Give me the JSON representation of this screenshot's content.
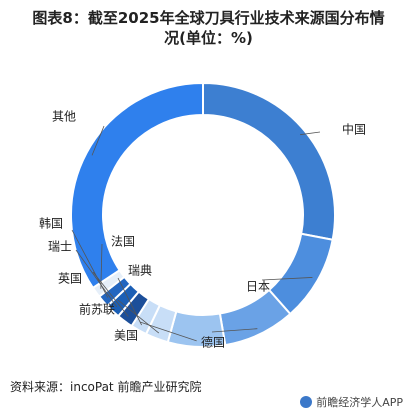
{
  "header": {
    "title_line1": "图表8：截至2025年全球刀具行业技术来源国分布情",
    "title_line2": "况(单位：%)"
  },
  "footer": {
    "source": "资料来源：incoPat 前瞻产业研究院",
    "brand": "前瞻经济学人APP"
  },
  "chart_data": {
    "type": "pie",
    "variant": "donut",
    "title": "截至2025年全球刀具行业技术来源国分布情况(单位：%)",
    "unit": "%",
    "start": "12 o'clock, clockwise",
    "categories": [
      "中国",
      "日本",
      "德国",
      "美国",
      "前苏联",
      "瑞典",
      "英国",
      "瑞士",
      "韩国",
      "法国",
      "其他"
    ],
    "values": [
      28.0,
      10.5,
      8.8,
      7.0,
      2.8,
      2.0,
      2.0,
      1.8,
      1.5,
      1.3,
      34.3
    ],
    "colors": [
      "#3d7fd1",
      "#4d8ede",
      "#6aa2e6",
      "#9cc4f0",
      "#c8def7",
      "#c8def7",
      "#1c4f9a",
      "#1b5fb5",
      "#2366c0",
      "#e6eff9",
      "#2f80ed"
    ]
  }
}
